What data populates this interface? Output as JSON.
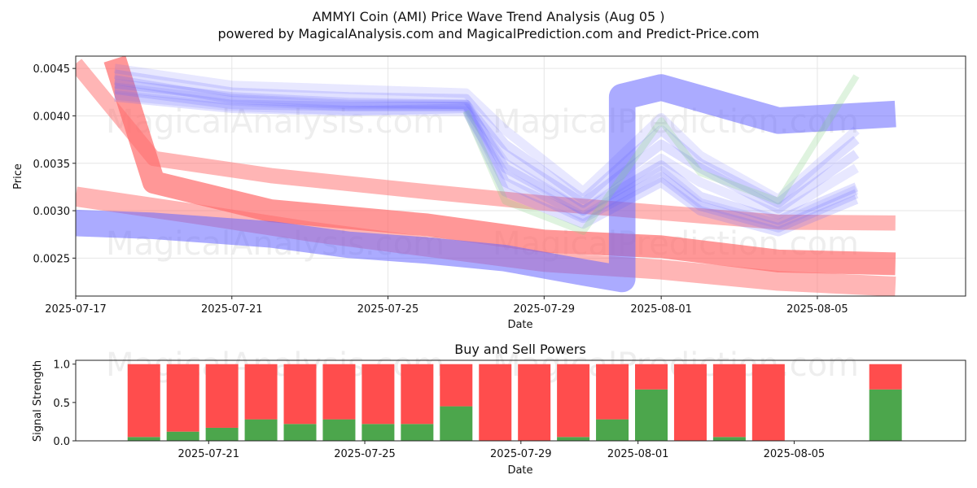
{
  "title": "AMMYI Coin (AMI) Price Wave Trend Analysis (Aug 05 )",
  "subtitle": "powered by MagicalAnalysis.com and MagicalPrediction.com and Predict-Price.com",
  "watermarks": [
    "MagicalAnalysis.com",
    "MagicalPrediction.com"
  ],
  "chart_data": [
    {
      "type": "area",
      "name": "price-wave-chart",
      "xlabel": "Date",
      "ylabel": "Price",
      "x_range": [
        "2025-07-17",
        "2025-08-08"
      ],
      "ylim": [
        0.0021,
        0.00463
      ],
      "x_ticks": [
        "2025-07-17",
        "2025-07-21",
        "2025-07-25",
        "2025-07-29",
        "2025-08-01",
        "2025-08-05"
      ],
      "y_ticks": [
        "0.0025",
        "0.0030",
        "0.0035",
        "0.0040",
        "0.0045"
      ],
      "grid": true,
      "colors": {
        "red": "#ff6b6b",
        "blue": "#6666ff",
        "green": "#7fd07f"
      },
      "bands": [
        {
          "color": "red",
          "opacity": 0.5,
          "width": 0.00016,
          "points": [
            [
              "2025-07-17",
              0.00455
            ],
            [
              "2025-07-19",
              0.00355
            ],
            [
              "2025-07-22",
              0.00337
            ],
            [
              "2025-07-26",
              0.0032
            ],
            [
              "2025-07-29",
              0.00308
            ],
            [
              "2025-08-01",
              0.00298
            ],
            [
              "2025-08-04",
              0.00288
            ],
            [
              "2025-08-07",
              0.00287
            ]
          ]
        },
        {
          "color": "red",
          "opacity": 0.5,
          "width": 0.00021,
          "points": [
            [
              "2025-07-17",
              0.00315
            ],
            [
              "2025-07-20",
              0.00297
            ],
            [
              "2025-07-23",
              0.00278
            ],
            [
              "2025-07-26",
              0.00262
            ],
            [
              "2025-07-29",
              0.00246
            ],
            [
              "2025-08-01",
              0.00238
            ],
            [
              "2025-08-04",
              0.00226
            ],
            [
              "2025-08-07",
              0.0022
            ]
          ]
        },
        {
          "color": "red",
          "opacity": 0.7,
          "width": 0.00024,
          "points": [
            [
              "2025-07-18",
              0.0046
            ],
            [
              "2025-07-19",
              0.0033
            ],
            [
              "2025-07-22",
              0.003
            ],
            [
              "2025-07-26",
              0.00285
            ],
            [
              "2025-07-29",
              0.00268
            ],
            [
              "2025-08-01",
              0.00262
            ],
            [
              "2025-08-04",
              0.00247
            ],
            [
              "2025-08-07",
              0.00244
            ]
          ]
        },
        {
          "color": "blue",
          "opacity": 0.55,
          "width": 0.00028,
          "points": [
            [
              "2025-07-17",
              0.00287
            ],
            [
              "2025-07-19",
              0.00284
            ],
            [
              "2025-07-22",
              0.00275
            ],
            [
              "2025-07-24",
              0.00264
            ],
            [
              "2025-07-26",
              0.00258
            ],
            [
              "2025-07-28",
              0.0025
            ],
            [
              "2025-07-30",
              0.00235
            ],
            [
              "2025-07-31",
              0.00228
            ],
            [
              "2025-07-31",
              0.0042
            ],
            [
              "2025-08-01",
              0.0043
            ],
            [
              "2025-08-04",
              0.00395
            ],
            [
              "2025-08-07",
              0.00402
            ]
          ]
        },
        {
          "color": "blue",
          "opacity": 0.2,
          "width": 0.0001,
          "points": [
            [
              "2025-07-18",
              0.00438
            ],
            [
              "2025-07-21",
              0.00418
            ],
            [
              "2025-07-24",
              0.00412
            ],
            [
              "2025-07-27",
              0.00412
            ],
            [
              "2025-07-28",
              0.00345
            ],
            [
              "2025-07-30",
              0.003
            ],
            [
              "2025-08-01",
              0.00348
            ],
            [
              "2025-08-02",
              0.00315
            ],
            [
              "2025-08-04",
              0.0029
            ],
            [
              "2025-08-06",
              0.00325
            ]
          ]
        },
        {
          "color": "blue",
          "opacity": 0.2,
          "width": 0.0001,
          "points": [
            [
              "2025-07-18",
              0.00428
            ],
            [
              "2025-07-21",
              0.00412
            ],
            [
              "2025-07-24",
              0.0041
            ],
            [
              "2025-07-27",
              0.0041
            ],
            [
              "2025-07-28",
              0.0033
            ],
            [
              "2025-07-30",
              0.00292
            ],
            [
              "2025-08-01",
              0.00336
            ],
            [
              "2025-08-02",
              0.00305
            ],
            [
              "2025-08-04",
              0.00282
            ],
            [
              "2025-08-06",
              0.00318
            ]
          ]
        },
        {
          "color": "blue",
          "opacity": 0.2,
          "width": 0.0001,
          "points": [
            [
              "2025-07-18",
              0.0042
            ],
            [
              "2025-07-21",
              0.00408
            ],
            [
              "2025-07-24",
              0.00405
            ],
            [
              "2025-07-27",
              0.00408
            ],
            [
              "2025-07-28",
              0.0032
            ],
            [
              "2025-07-30",
              0.00286
            ],
            [
              "2025-08-01",
              0.0033
            ],
            [
              "2025-08-02",
              0.003
            ],
            [
              "2025-08-04",
              0.00278
            ],
            [
              "2025-08-06",
              0.00312
            ]
          ]
        },
        {
          "color": "blue",
          "opacity": 0.2,
          "width": 0.0001,
          "points": [
            [
              "2025-07-18",
              0.00434
            ],
            [
              "2025-07-21",
              0.0042
            ],
            [
              "2025-07-24",
              0.00414
            ],
            [
              "2025-07-27",
              0.00412
            ],
            [
              "2025-07-28",
              0.0036
            ],
            [
              "2025-07-30",
              0.00308
            ],
            [
              "2025-08-01",
              0.0037
            ],
            [
              "2025-08-02",
              0.00345
            ],
            [
              "2025-08-04",
              0.00302
            ],
            [
              "2025-08-06",
              0.0036
            ]
          ]
        },
        {
          "color": "blue",
          "opacity": 0.2,
          "width": 0.0001,
          "points": [
            [
              "2025-07-18",
              0.00444
            ],
            [
              "2025-07-21",
              0.00425
            ],
            [
              "2025-07-24",
              0.0042
            ],
            [
              "2025-07-27",
              0.00418
            ],
            [
              "2025-07-28",
              0.0037
            ],
            [
              "2025-07-30",
              0.00312
            ],
            [
              "2025-08-01",
              0.00385
            ],
            [
              "2025-08-02",
              0.0035
            ],
            [
              "2025-08-04",
              0.00308
            ],
            [
              "2025-08-06",
              0.00375
            ]
          ]
        },
        {
          "color": "blue",
          "opacity": 0.15,
          "width": 0.0001,
          "points": [
            [
              "2025-07-18",
              0.0045
            ],
            [
              "2025-07-21",
              0.00432
            ],
            [
              "2025-07-24",
              0.00428
            ],
            [
              "2025-07-27",
              0.00424
            ],
            [
              "2025-07-28",
              0.00385
            ],
            [
              "2025-07-30",
              0.0032
            ],
            [
              "2025-08-01",
              0.00398
            ],
            [
              "2025-08-02",
              0.00358
            ],
            [
              "2025-08-04",
              0.00312
            ],
            [
              "2025-08-06",
              0.00385
            ]
          ]
        },
        {
          "color": "blue",
          "opacity": 0.15,
          "width": 0.0001,
          "points": [
            [
              "2025-07-18",
              0.00422
            ],
            [
              "2025-07-21",
              0.0041
            ],
            [
              "2025-07-24",
              0.00406
            ],
            [
              "2025-07-27",
              0.00405
            ],
            [
              "2025-07-28",
              0.00338
            ],
            [
              "2025-07-30",
              0.00294
            ],
            [
              "2025-08-01",
              0.00342
            ],
            [
              "2025-08-02",
              0.00308
            ],
            [
              "2025-08-04",
              0.00286
            ],
            [
              "2025-08-06",
              0.00322
            ]
          ]
        },
        {
          "color": "blue",
          "opacity": 0.15,
          "width": 0.0001,
          "points": [
            [
              "2025-07-18",
              0.0043
            ],
            [
              "2025-07-21",
              0.00416
            ],
            [
              "2025-07-24",
              0.0041
            ],
            [
              "2025-07-27",
              0.0041
            ],
            [
              "2025-07-28",
              0.0035
            ],
            [
              "2025-07-30",
              0.003
            ],
            [
              "2025-08-01",
              0.00355
            ],
            [
              "2025-08-02",
              0.0033
            ],
            [
              "2025-08-04",
              0.00296
            ],
            [
              "2025-08-06",
              0.00345
            ]
          ]
        },
        {
          "color": "green",
          "opacity": 0.25,
          "width": 7e-05,
          "points": [
            [
              "2025-07-27",
              0.00405
            ],
            [
              "2025-07-28",
              0.0031
            ],
            [
              "2025-07-30",
              0.00278
            ],
            [
              "2025-08-01",
              0.00395
            ],
            [
              "2025-08-02",
              0.0034
            ],
            [
              "2025-08-04",
              0.0031
            ],
            [
              "2025-08-06",
              0.00442
            ]
          ]
        }
      ]
    },
    {
      "type": "bar",
      "name": "buy-sell-powers-chart",
      "title": "Buy and Sell Powers",
      "xlabel": "Date",
      "ylabel": "Signal Strength",
      "ylim": [
        0,
        1.05
      ],
      "y_ticks": [
        "0.0",
        "0.5",
        "1.0"
      ],
      "x_ticks": [
        "2025-07-21",
        "2025-07-25",
        "2025-07-29",
        "2025-08-01",
        "2025-08-05"
      ],
      "x_range": [
        "2025-07-17",
        "2025-08-08"
      ],
      "colors": {
        "buy": "#4ca64c",
        "sell": "#ff4d4d"
      },
      "series": [
        {
          "name": "Buy",
          "values": [
            0.05,
            0.12,
            0.17,
            0.28,
            0.22,
            0.28,
            0.22,
            0.22,
            0.45,
            0.0,
            0.0,
            0.05,
            0.28,
            0.67,
            0.0,
            0.05,
            0.0,
            0.0,
            0.0,
            0.67
          ]
        },
        {
          "name": "Sell",
          "values": [
            0.95,
            0.88,
            0.83,
            0.72,
            0.78,
            0.72,
            0.78,
            0.78,
            0.55,
            1.0,
            1.0,
            0.95,
            0.72,
            0.33,
            1.0,
            0.95,
            1.0,
            0.0,
            0.0,
            0.33
          ]
        }
      ],
      "categories": [
        "2025-07-18",
        "2025-07-19",
        "2025-07-20",
        "2025-07-21",
        "2025-07-22",
        "2025-07-23",
        "2025-07-24",
        "2025-07-25",
        "2025-07-26",
        "2025-07-27",
        "2025-07-28",
        "2025-07-29",
        "2025-07-30",
        "2025-07-31",
        "2025-08-01",
        "2025-08-02",
        "2025-08-03",
        "2025-08-04",
        "2025-08-05",
        "2025-08-06"
      ]
    }
  ]
}
